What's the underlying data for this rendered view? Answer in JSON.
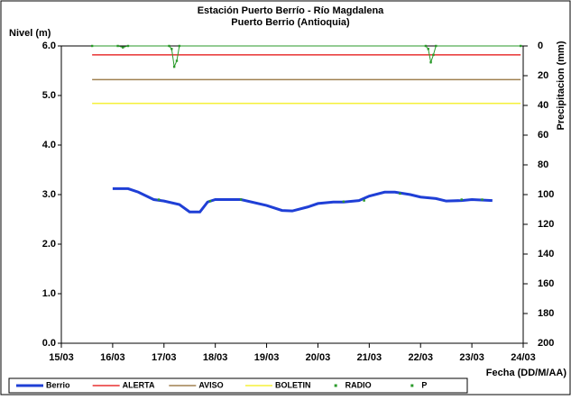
{
  "chart_data": {
    "type": "line",
    "title": "Estación Puerto Berrío - Río Magdalena",
    "subtitle": "Puerto Berrio (Antioquia)",
    "ylabel": "Nivel (m)",
    "y2label": "Precipitacion (mm)",
    "xlabel": "Fecha (DD/M/AA)",
    "xlim": [
      15,
      24
    ],
    "xticks": [
      {
        "value": 15,
        "label": "15/03"
      },
      {
        "value": 16,
        "label": "16/03"
      },
      {
        "value": 17,
        "label": "17/03"
      },
      {
        "value": 18,
        "label": "18/03"
      },
      {
        "value": 19,
        "label": "19/03"
      },
      {
        "value": 20,
        "label": "20/03"
      },
      {
        "value": 21,
        "label": "21/03"
      },
      {
        "value": 22,
        "label": "22/03"
      },
      {
        "value": 23,
        "label": "23/03"
      },
      {
        "value": 24,
        "label": "24/03"
      }
    ],
    "ylim": [
      0,
      6
    ],
    "yticks": [
      {
        "value": 0,
        "label": "0.0"
      },
      {
        "value": 1,
        "label": "1.0"
      },
      {
        "value": 2,
        "label": "2.0"
      },
      {
        "value": 3,
        "label": "3.0"
      },
      {
        "value": 4,
        "label": "4.0"
      },
      {
        "value": 5,
        "label": "5.0"
      },
      {
        "value": 6,
        "label": "6.0"
      }
    ],
    "y2lim": [
      0,
      200
    ],
    "y2inverted": true,
    "y2ticks": [
      0,
      20,
      40,
      60,
      80,
      100,
      120,
      140,
      160,
      180,
      200
    ],
    "series": [
      {
        "name": "Berrio",
        "color": "#1f3fd6",
        "style": "line",
        "width": 3,
        "x": [
          16.0,
          16.3,
          16.5,
          16.8,
          17.0,
          17.3,
          17.5,
          17.7,
          17.85,
          18.0,
          18.5,
          19.0,
          19.3,
          19.5,
          19.8,
          20.0,
          20.3,
          20.5,
          20.8,
          21.0,
          21.3,
          21.5,
          21.8,
          22.0,
          22.3,
          22.5,
          22.8,
          23.0,
          23.4
        ],
        "values": [
          3.12,
          3.12,
          3.05,
          2.9,
          2.87,
          2.8,
          2.65,
          2.65,
          2.85,
          2.9,
          2.9,
          2.78,
          2.68,
          2.67,
          2.75,
          2.82,
          2.85,
          2.85,
          2.88,
          2.97,
          3.05,
          3.05,
          3.0,
          2.95,
          2.92,
          2.87,
          2.88,
          2.9,
          2.88
        ]
      },
      {
        "name": "ALERTA",
        "color": "#e83030",
        "style": "line",
        "width": 1.5,
        "x": [
          15.6,
          23.95
        ],
        "values": [
          5.82,
          5.82
        ]
      },
      {
        "name": "AVISO",
        "color": "#a08050",
        "style": "line",
        "width": 1.5,
        "x": [
          15.6,
          23.95
        ],
        "values": [
          5.32,
          5.32
        ]
      },
      {
        "name": "BOLETIN",
        "color": "#f5f03a",
        "style": "line",
        "width": 1.5,
        "x": [
          15.6,
          23.95
        ],
        "values": [
          4.84,
          4.84
        ]
      },
      {
        "name": "RADIO",
        "color": "#2a9a2a",
        "style": "dots",
        "x": [
          16.9,
          17.9,
          18.5,
          20.5,
          20.9,
          21.6,
          22.8,
          23.2
        ],
        "values": [
          2.9,
          2.87,
          2.9,
          2.86,
          2.88,
          3.02,
          2.9,
          2.9
        ]
      },
      {
        "name": "P",
        "color": "#2a9a2a",
        "style": "linedots",
        "axis": "y2",
        "x": [
          15.6,
          16.1,
          16.2,
          16.3,
          17.1,
          17.15,
          17.2,
          17.25,
          17.3,
          22.1,
          22.15,
          22.2,
          22.25,
          22.3,
          23.95
        ],
        "values": [
          0,
          0,
          1,
          0,
          0,
          2,
          14,
          10,
          0,
          0,
          2,
          11,
          6,
          0,
          0
        ]
      }
    ]
  }
}
